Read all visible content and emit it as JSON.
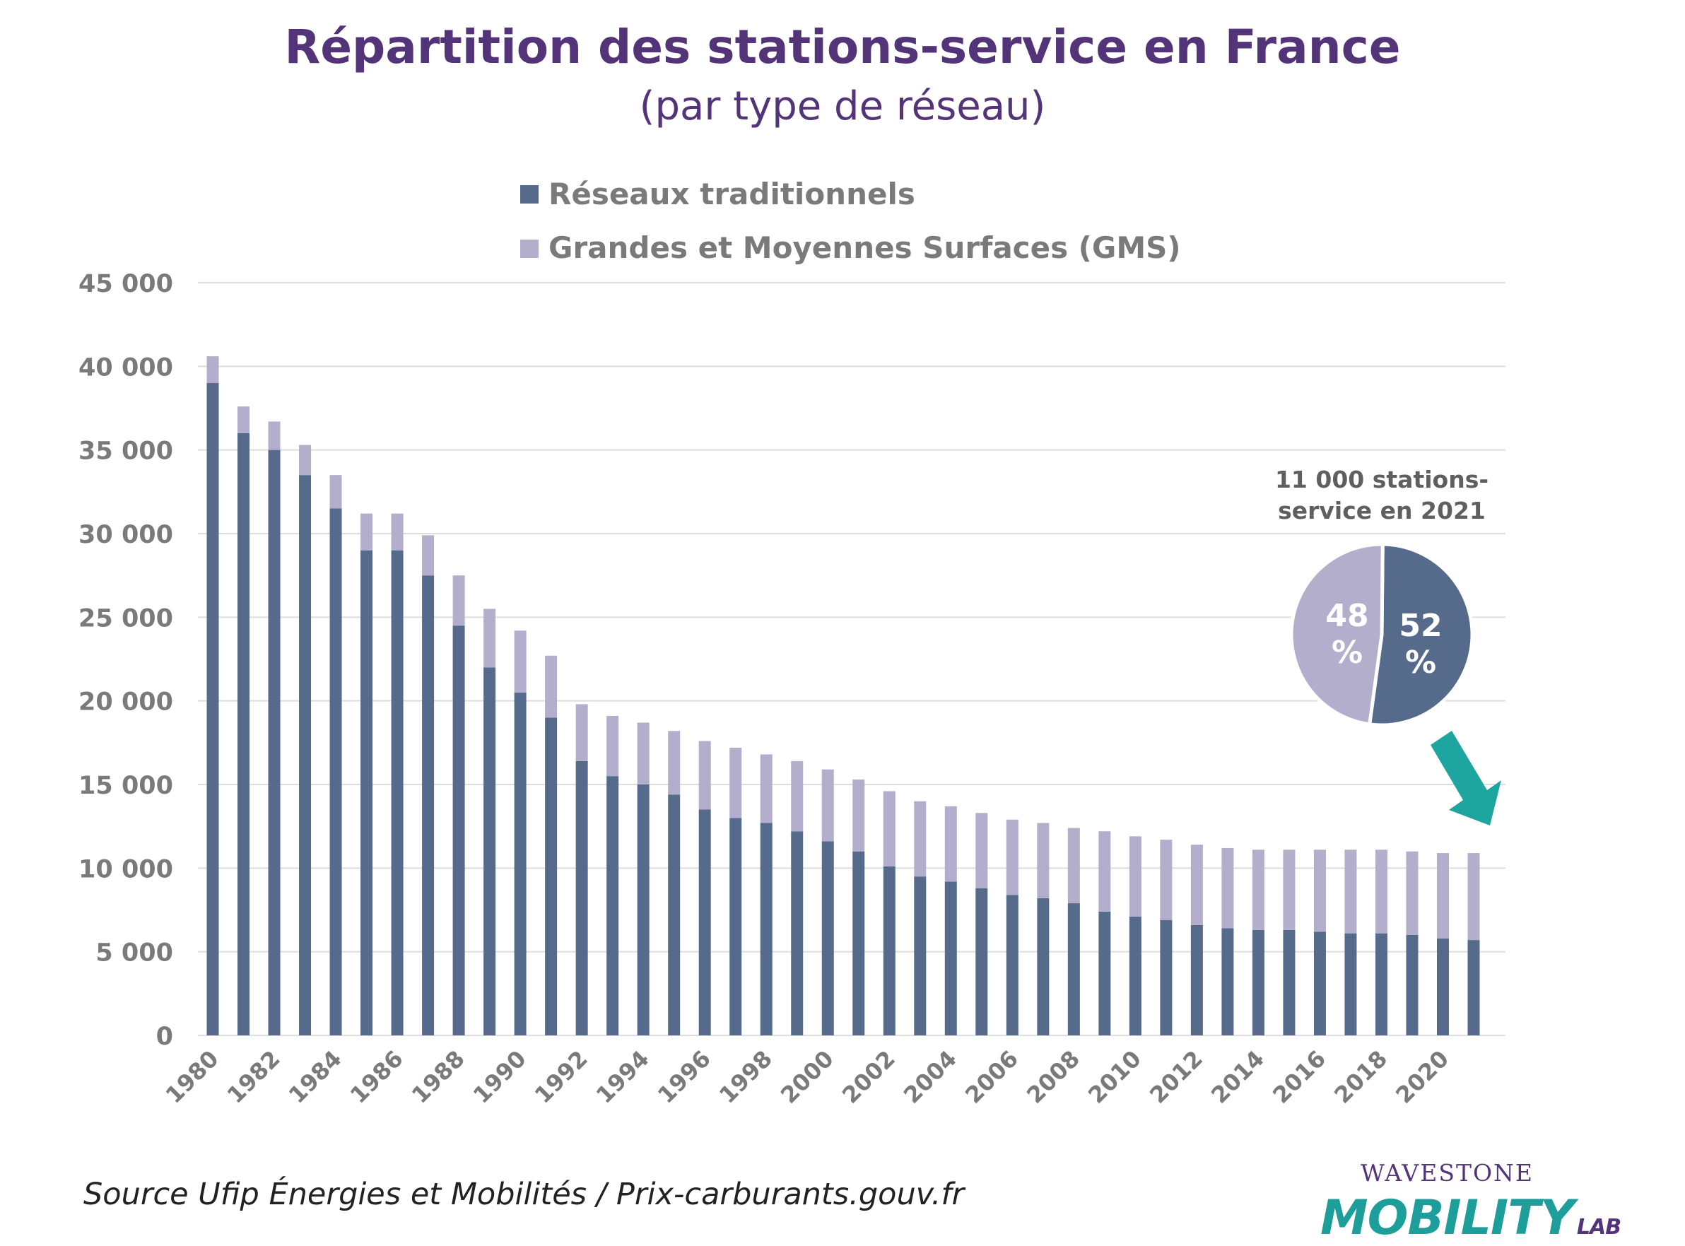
{
  "chart_data": {
    "type": "bar",
    "stacked": true,
    "title": "Répartition des stations-service en France",
    "subtitle": "(par type de réseau)",
    "categories": [
      "1980",
      "1981",
      "1982",
      "1983",
      "1984",
      "1985",
      "1986",
      "1987",
      "1988",
      "1989",
      "1990",
      "1991",
      "1992",
      "1993",
      "1994",
      "1995",
      "1996",
      "1997",
      "1998",
      "1999",
      "2000",
      "2001",
      "2002",
      "2003",
      "2004",
      "2005",
      "2006",
      "2007",
      "2008",
      "2009",
      "2010",
      "2011",
      "2012",
      "2013",
      "2014",
      "2015",
      "2016",
      "2017",
      "2018",
      "2019",
      "2020",
      "2021"
    ],
    "x_tick_labels": [
      "1980",
      "1982",
      "1984",
      "1986",
      "1988",
      "1990",
      "1992",
      "1994",
      "1996",
      "1998",
      "2000",
      "2002",
      "2004",
      "2006",
      "2008",
      "2010",
      "2012",
      "2014",
      "2016",
      "2018",
      "2020"
    ],
    "series": [
      {
        "name": "Réseaux traditionnels",
        "color": "#566b8c",
        "values": [
          39000,
          36000,
          35000,
          33500,
          31500,
          29000,
          29000,
          27500,
          24500,
          22000,
          20500,
          19000,
          16400,
          15500,
          15000,
          14400,
          13500,
          13000,
          12700,
          12200,
          11600,
          11000,
          10100,
          9500,
          9200,
          8800,
          8400,
          8200,
          7900,
          7400,
          7100,
          6900,
          6600,
          6400,
          6300,
          6300,
          6200,
          6100,
          6100,
          6000,
          5800,
          5700
        ]
      },
      {
        "name": "Grandes et Moyennes Surfaces (GMS)",
        "color": "#b3aecb",
        "values": [
          1600,
          1600,
          1700,
          1800,
          2000,
          2200,
          2200,
          2400,
          3000,
          3500,
          3700,
          3700,
          3400,
          3600,
          3700,
          3800,
          4100,
          4200,
          4100,
          4200,
          4300,
          4300,
          4500,
          4500,
          4500,
          4500,
          4500,
          4500,
          4500,
          4800,
          4800,
          4800,
          4800,
          4800,
          4800,
          4800,
          4900,
          5000,
          5000,
          5000,
          5100,
          5200
        ]
      }
    ],
    "ylim": [
      0,
      45000
    ],
    "y_ticks": [
      "0",
      "5 000",
      "10 000",
      "15 000",
      "20 000",
      "25 000",
      "30 000",
      "35 000",
      "40 000",
      "45 000"
    ],
    "xlabel": "",
    "ylabel": "",
    "grid": true,
    "legend_position": "top"
  },
  "inset_pie": {
    "caption_line1": "11 000 stations-",
    "caption_line2": "service en 2021",
    "slices": [
      {
        "label_num": "52",
        "label_pct": "%",
        "value": 52,
        "color": "#566b8c"
      },
      {
        "label_num": "48",
        "label_pct": "%",
        "value": 48,
        "color": "#b3aecb"
      }
    ],
    "arrow_color": "#1ea59f"
  },
  "source": "Source Ufip Énergies et Mobilités / Prix-carburants.gouv.fr",
  "logo": {
    "top_text": "WAVESTONE",
    "main_text": "MOBILITY",
    "suffix_text": "LAB"
  },
  "colors": {
    "title": "#533479",
    "axis_text": "#7a7a7a",
    "grid": "#dddddd"
  }
}
